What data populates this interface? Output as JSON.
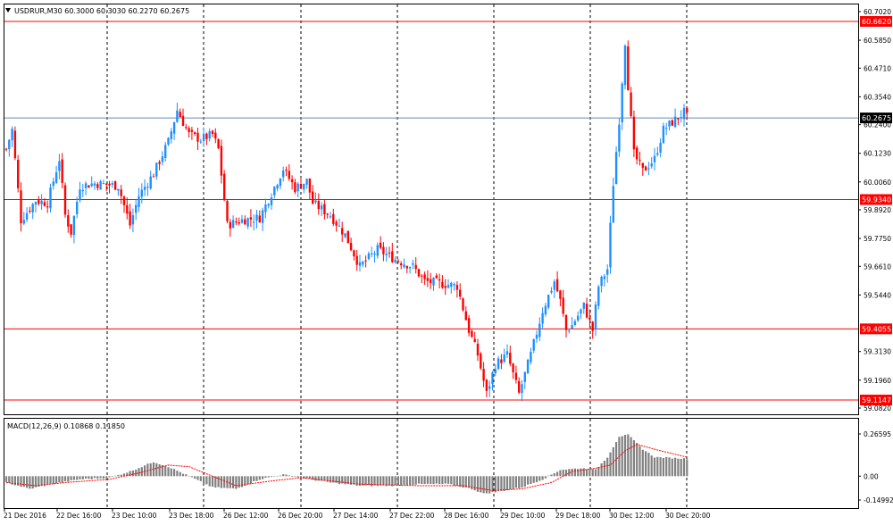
{
  "colors": {
    "bull": "#1e90ff",
    "bear": "#ff0000",
    "macd_hist": "#808080",
    "signal": "#ff0000",
    "grid": "#000000",
    "level_line": "#ff0000",
    "price_line": "#6a8cba"
  },
  "chart_data": [
    {
      "type": "candlestick",
      "title": "USDRUR,M30  60.3000 60.3030 60.2270 60.2675",
      "ylim": [
        59.082,
        60.702
      ],
      "y_ticks": [
        "60.7020",
        "60.5850",
        "60.4710",
        "60.3540",
        "60.2400",
        "60.1230",
        "60.0060",
        "59.8920",
        "59.7750",
        "59.6610",
        "59.5440",
        "59.3130",
        "59.1960",
        "59.0820"
      ],
      "x_ticks": [
        "21 Dec 2016",
        "22 Dec 16:00",
        "23 Dec 10:00",
        "23 Dec 18:00",
        "26 Dec 12:00",
        "26 Dec 20:00",
        "27 Dec 14:00",
        "27 Dec 22:00",
        "28 Dec 16:00",
        "29 Dec 10:00",
        "29 Dec 18:00",
        "30 Dec 12:00",
        "30 Dec 20:00"
      ],
      "horizontal_levels": [
        {
          "label": "60.6620",
          "value": 60.662
        },
        {
          "label": "59.9340",
          "value": 59.934
        },
        {
          "label": "59.4055",
          "value": 59.4055
        },
        {
          "label": "59.1147",
          "value": 59.1147
        }
      ],
      "current_price": {
        "label": "60.2675",
        "value": 60.2675
      },
      "grid": true,
      "series": {
        "anchors": [
          [
            0,
            60.14
          ],
          [
            2,
            60.22
          ],
          [
            5,
            59.85
          ],
          [
            10,
            59.93
          ],
          [
            14,
            59.92
          ],
          [
            18,
            60.1
          ],
          [
            20,
            59.87
          ],
          [
            22,
            59.8
          ],
          [
            25,
            59.99
          ],
          [
            30,
            60.0
          ],
          [
            38,
            59.99
          ],
          [
            42,
            59.83
          ],
          [
            45,
            59.95
          ],
          [
            50,
            60.04
          ],
          [
            55,
            60.17
          ],
          [
            58,
            60.3
          ],
          [
            62,
            60.2
          ],
          [
            66,
            60.18
          ],
          [
            70,
            60.2
          ],
          [
            72,
            60.14
          ],
          [
            75,
            59.83
          ],
          [
            80,
            59.85
          ],
          [
            86,
            59.86
          ],
          [
            90,
            59.96
          ],
          [
            94,
            60.06
          ],
          [
            98,
            59.98
          ],
          [
            102,
            60.01
          ],
          [
            104,
            59.92
          ],
          [
            110,
            59.87
          ],
          [
            115,
            59.79
          ],
          [
            120,
            59.66
          ],
          [
            126,
            59.73
          ],
          [
            132,
            59.69
          ],
          [
            138,
            59.66
          ],
          [
            142,
            59.6
          ],
          [
            148,
            59.59
          ],
          [
            153,
            59.58
          ],
          [
            157,
            59.4
          ],
          [
            160,
            59.3
          ],
          [
            163,
            59.14
          ],
          [
            166,
            59.26
          ],
          [
            170,
            59.3
          ],
          [
            174,
            59.14
          ],
          [
            178,
            59.3
          ],
          [
            182,
            59.48
          ],
          [
            186,
            59.6
          ],
          [
            188,
            59.52
          ],
          [
            190,
            59.4
          ],
          [
            192,
            59.42
          ],
          [
            196,
            59.5
          ],
          [
            199,
            59.4
          ],
          [
            201,
            59.58
          ],
          [
            204,
            59.65
          ],
          [
            206,
            60.0
          ],
          [
            208,
            60.26
          ],
          [
            210,
            60.58
          ],
          [
            211,
            60.4
          ],
          [
            213,
            60.12
          ],
          [
            216,
            60.05
          ],
          [
            220,
            60.1
          ],
          [
            223,
            60.22
          ],
          [
            226,
            60.25
          ],
          [
            230,
            60.29
          ],
          [
            231,
            60.27
          ]
        ]
      }
    },
    {
      "type": "macd",
      "title": "MACD(12,26,9) 0.10868 0.11850",
      "ylim": [
        -0.14992,
        0.26595
      ],
      "y_ticks": [
        "0.26595",
        "0.00",
        "-0.14992"
      ],
      "series": {
        "hist_anchors": [
          [
            0,
            -0.04
          ],
          [
            8,
            -0.08
          ],
          [
            15,
            -0.05
          ],
          [
            25,
            -0.02
          ],
          [
            35,
            -0.01
          ],
          [
            42,
            0.03
          ],
          [
            50,
            0.09
          ],
          [
            55,
            0.06
          ],
          [
            62,
            0.0
          ],
          [
            70,
            -0.07
          ],
          [
            78,
            -0.08
          ],
          [
            86,
            -0.02
          ],
          [
            94,
            0.01
          ],
          [
            100,
            -0.01
          ],
          [
            110,
            -0.04
          ],
          [
            120,
            -0.06
          ],
          [
            130,
            -0.06
          ],
          [
            140,
            -0.05
          ],
          [
            150,
            -0.05
          ],
          [
            158,
            -0.08
          ],
          [
            162,
            -0.11
          ],
          [
            166,
            -0.1
          ],
          [
            175,
            -0.07
          ],
          [
            182,
            -0.02
          ],
          [
            188,
            0.04
          ],
          [
            195,
            0.05
          ],
          [
            200,
            0.04
          ],
          [
            204,
            0.12
          ],
          [
            208,
            0.25
          ],
          [
            211,
            0.26
          ],
          [
            216,
            0.17
          ],
          [
            220,
            0.12
          ],
          [
            231,
            0.11
          ]
        ],
        "signal_anchors": [
          [
            0,
            -0.04
          ],
          [
            10,
            -0.06
          ],
          [
            20,
            -0.04
          ],
          [
            35,
            -0.02
          ],
          [
            45,
            0.02
          ],
          [
            55,
            0.07
          ],
          [
            62,
            0.06
          ],
          [
            70,
            0.0
          ],
          [
            78,
            -0.06
          ],
          [
            90,
            -0.03
          ],
          [
            100,
            -0.01
          ],
          [
            110,
            -0.03
          ],
          [
            120,
            -0.05
          ],
          [
            140,
            -0.06
          ],
          [
            155,
            -0.06
          ],
          [
            165,
            -0.09
          ],
          [
            175,
            -0.08
          ],
          [
            185,
            -0.04
          ],
          [
            192,
            0.03
          ],
          [
            200,
            0.05
          ],
          [
            205,
            0.07
          ],
          [
            210,
            0.16
          ],
          [
            214,
            0.2
          ],
          [
            222,
            0.16
          ],
          [
            231,
            0.12
          ]
        ]
      }
    }
  ]
}
